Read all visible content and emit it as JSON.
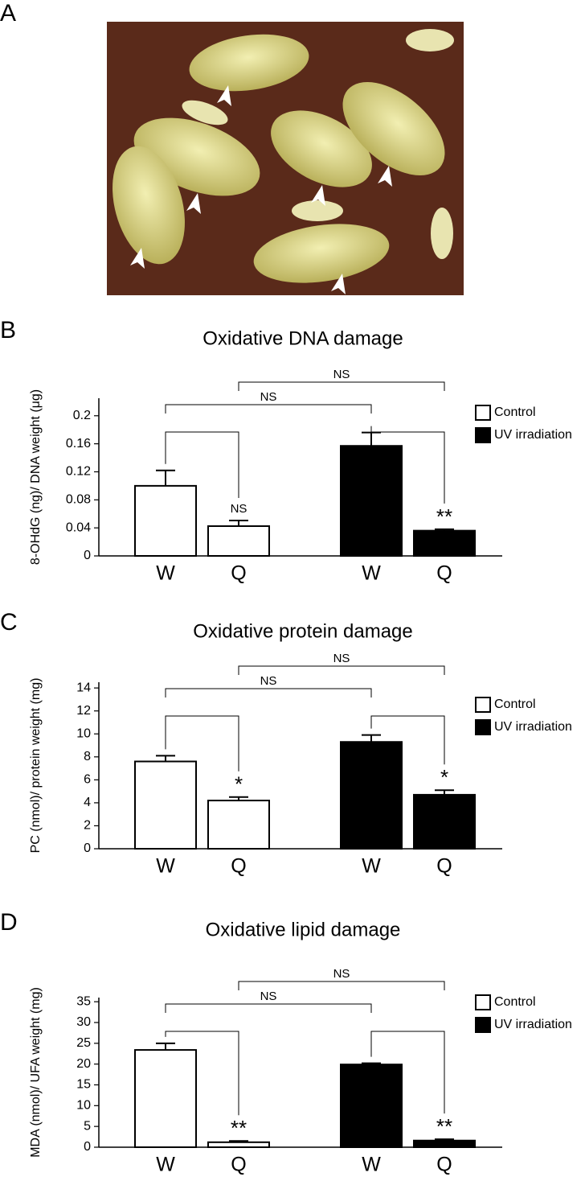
{
  "figure": {
    "panel_label": "A"
  },
  "chart_data": [
    {
      "type": "bar",
      "panel_label": "B",
      "title": "Oxidative DNA damage",
      "y_label": "8-OHdG (ng)/ DNA weight (μg)",
      "categories": [
        "W",
        "Q",
        "W",
        "Q"
      ],
      "series": [
        {
          "name": "Control",
          "color": "#ffffff",
          "values": [
            0.1,
            0.0425,
            null,
            null
          ],
          "errors": [
            0.022,
            0.008,
            null,
            null
          ]
        },
        {
          "name": "UV irradiation",
          "color": "#000000",
          "values": [
            null,
            null,
            0.157,
            0.036
          ],
          "errors": [
            null,
            null,
            0.019,
            0.002
          ]
        }
      ],
      "ylim": [
        0,
        0.225
      ],
      "yticks": [
        0,
        0.04,
        0.08,
        0.12,
        0.16,
        0.2
      ],
      "comparisons": [
        {
          "bars": [
            0,
            1
          ],
          "label": "NS"
        },
        {
          "bars": [
            2,
            3
          ],
          "label": "**"
        },
        {
          "bars": [
            0,
            2
          ],
          "label": "NS"
        },
        {
          "bars": [
            1,
            3
          ],
          "label": "NS"
        }
      ]
    },
    {
      "type": "bar",
      "panel_label": "C",
      "title": "Oxidative protein damage",
      "y_label": "PC (nmol)/ protein weight (mg)",
      "categories": [
        "W",
        "Q",
        "W",
        "Q"
      ],
      "series": [
        {
          "name": "Control",
          "color": "#ffffff",
          "values": [
            7.6,
            4.2,
            null,
            null
          ],
          "errors": [
            0.5,
            0.3,
            null,
            null
          ]
        },
        {
          "name": "UV irradiation",
          "color": "#000000",
          "values": [
            null,
            null,
            9.3,
            4.7
          ],
          "errors": [
            null,
            null,
            0.6,
            0.4
          ]
        }
      ],
      "ylim": [
        0,
        14.5
      ],
      "yticks": [
        0,
        2,
        4,
        6,
        8,
        10,
        12,
        14
      ],
      "comparisons": [
        {
          "bars": [
            0,
            1
          ],
          "label": "*"
        },
        {
          "bars": [
            2,
            3
          ],
          "label": "*"
        },
        {
          "bars": [
            0,
            2
          ],
          "label": "NS"
        },
        {
          "bars": [
            1,
            3
          ],
          "label": "NS"
        }
      ]
    },
    {
      "type": "bar",
      "panel_label": "D",
      "title": "Oxidative lipid damage",
      "y_label": "MDA (nmol)/ UFA weight (mg)",
      "categories": [
        "W",
        "Q",
        "W",
        "Q"
      ],
      "series": [
        {
          "name": "Control",
          "color": "#ffffff",
          "values": [
            23.4,
            1.2,
            null,
            null
          ],
          "errors": [
            1.6,
            0.3,
            null,
            null
          ]
        },
        {
          "name": "UV irradiation",
          "color": "#000000",
          "values": [
            null,
            null,
            19.9,
            1.6
          ],
          "errors": [
            null,
            null,
            0.3,
            0.3
          ]
        }
      ],
      "ylim": [
        0,
        36
      ],
      "yticks": [
        0,
        5,
        10,
        15,
        20,
        25,
        30,
        35
      ],
      "comparisons": [
        {
          "bars": [
            0,
            1
          ],
          "label": "**"
        },
        {
          "bars": [
            2,
            3
          ],
          "label": "**"
        },
        {
          "bars": [
            0,
            2
          ],
          "label": "NS"
        },
        {
          "bars": [
            1,
            3
          ],
          "label": "NS"
        }
      ]
    }
  ]
}
